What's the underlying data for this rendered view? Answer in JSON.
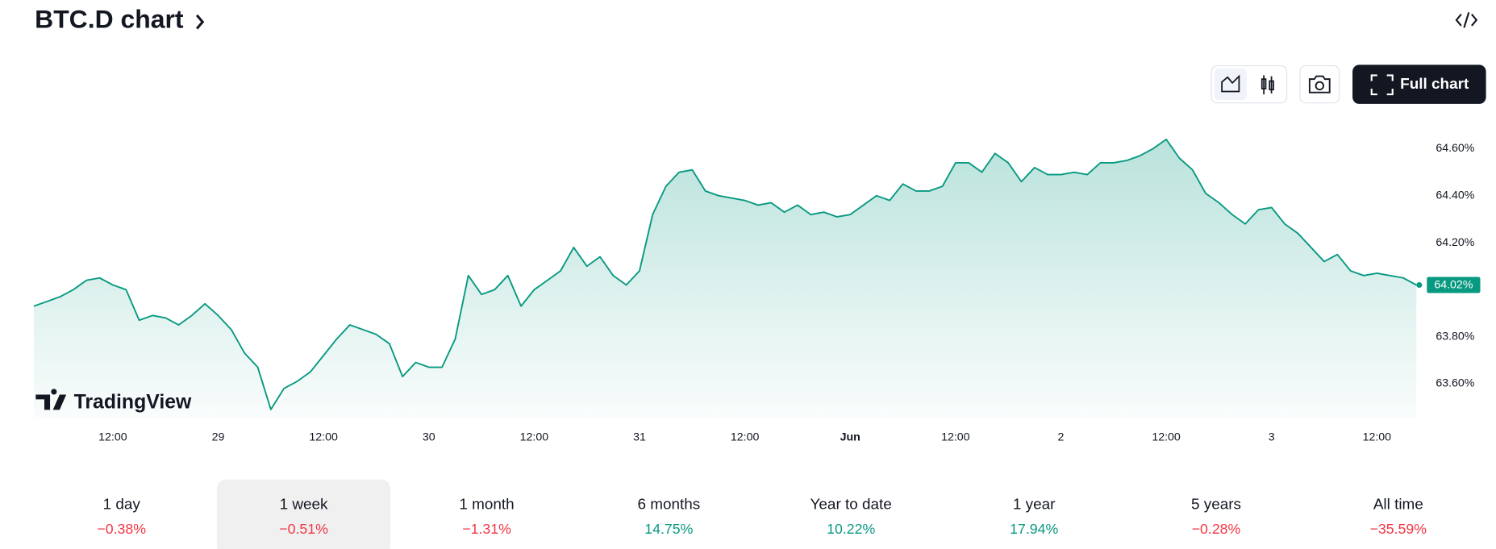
{
  "header": {
    "title": "BTC.D chart"
  },
  "toolbar": {
    "full_chart": "Full chart"
  },
  "watermark": "TradingView",
  "chart_data": {
    "type": "line",
    "series": [
      {
        "color": "#089981",
        "values": [
          63.93,
          63.95,
          63.97,
          64.0,
          64.04,
          64.05,
          64.02,
          64.0,
          63.87,
          63.89,
          63.88,
          63.85,
          63.89,
          63.94,
          63.89,
          63.83,
          63.73,
          63.67,
          63.49,
          63.58,
          63.61,
          63.65,
          63.72,
          63.79,
          63.85,
          63.83,
          63.81,
          63.77,
          63.63,
          63.69,
          63.67,
          63.67,
          63.79,
          64.06,
          63.98,
          64.0,
          64.06,
          63.93,
          64.0,
          64.04,
          64.08,
          64.18,
          64.1,
          64.14,
          64.06,
          64.02,
          64.08,
          64.32,
          64.44,
          64.5,
          64.51,
          64.42,
          64.4,
          64.39,
          64.38,
          64.36,
          64.37,
          64.33,
          64.36,
          64.32,
          64.33,
          64.31,
          64.32,
          64.36,
          64.4,
          64.38,
          64.45,
          64.42,
          64.42,
          64.44,
          64.54,
          64.54,
          64.5,
          64.58,
          64.54,
          64.46,
          64.52,
          64.49,
          64.49,
          64.5,
          64.49,
          64.54,
          64.54,
          64.55,
          64.57,
          64.6,
          64.64,
          64.56,
          64.51,
          64.41,
          64.37,
          64.32,
          64.28,
          64.34,
          64.35,
          64.28,
          64.24,
          64.18,
          64.12,
          64.15,
          64.08,
          64.06,
          64.07,
          64.06,
          64.05,
          64.02
        ],
        "value_labels": [
          null,
          null,
          null,
          null,
          null,
          null,
          null,
          null,
          null,
          null,
          null,
          null,
          null,
          null,
          null,
          null,
          null,
          null,
          null,
          null,
          null,
          null,
          null,
          null,
          null,
          null,
          null,
          null,
          null,
          null,
          null,
          null,
          null,
          null,
          null,
          null,
          null,
          null,
          null,
          null,
          null,
          null,
          null,
          null,
          null,
          null,
          null,
          null,
          null,
          null,
          null,
          null,
          null,
          null,
          null,
          null,
          null,
          null,
          null,
          null,
          null,
          null,
          null,
          null,
          null,
          null,
          null,
          null,
          null,
          null,
          null,
          null,
          null,
          null,
          null,
          null,
          null,
          null,
          null,
          null,
          null,
          null,
          null,
          null,
          null,
          null,
          null,
          null,
          null,
          null,
          null,
          null,
          null,
          null,
          null,
          null,
          null,
          null,
          null,
          null,
          null,
          null,
          null,
          null,
          null,
          "64.02%"
        ]
      }
    ],
    "xlim": [
      0,
      105
    ],
    "xticks": [
      {
        "value": 6,
        "label": "12:00"
      },
      {
        "value": 14,
        "label": "29"
      },
      {
        "value": 22,
        "label": "12:00"
      },
      {
        "value": 30,
        "label": "30"
      },
      {
        "value": 38,
        "label": "12:00"
      },
      {
        "value": 46,
        "label": "31"
      },
      {
        "value": 54,
        "label": "12:00"
      },
      {
        "value": 62,
        "label": "Jun",
        "bold": true
      },
      {
        "value": 70,
        "label": "12:00"
      },
      {
        "value": 78,
        "label": "2"
      },
      {
        "value": 86,
        "label": "12:00"
      },
      {
        "value": 94,
        "label": "3"
      },
      {
        "value": 102,
        "label": "12:00"
      }
    ],
    "ylim": [
      63.45,
      64.7
    ],
    "yticks": [
      {
        "value": 63.6,
        "label": "63.60%"
      },
      {
        "value": 63.8,
        "label": "63.80%"
      },
      {
        "value": 64.2,
        "label": "64.20%"
      },
      {
        "value": 64.4,
        "label": "64.40%"
      },
      {
        "value": 64.6,
        "label": "64.60%"
      }
    ]
  },
  "periods": [
    {
      "label": "1 day",
      "change": "−0.38%",
      "color": "#f23645"
    },
    {
      "label": "1 week",
      "change": "−0.51%",
      "color": "#f23645",
      "selected": true
    },
    {
      "label": "1 month",
      "change": "−1.31%",
      "color": "#f23645"
    },
    {
      "label": "6 months",
      "change": "14.75%",
      "color": "#089981"
    },
    {
      "label": "Year to date",
      "change": "10.22%",
      "color": "#089981"
    },
    {
      "label": "1 year",
      "change": "17.94%",
      "color": "#089981"
    },
    {
      "label": "5 years",
      "change": "−0.28%",
      "color": "#f23645"
    },
    {
      "label": "All time",
      "change": "−35.59%",
      "color": "#f23645"
    }
  ]
}
